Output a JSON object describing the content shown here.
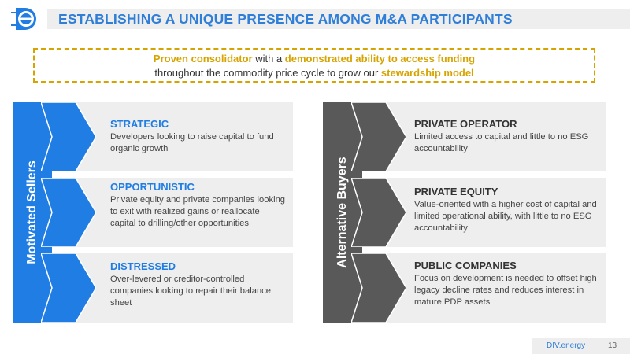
{
  "header": {
    "title": "ESTABLISHING A UNIQUE PRESENCE AMONG M&A PARTICIPANTS"
  },
  "callout": {
    "line1_hl1": "Proven consolidator",
    "line1_mid": " with a ",
    "line1_hl2": "demonstrated ability to access funding",
    "line2_text": "throughout the commodity price cycle to grow our ",
    "line2_hl": "stewardship model"
  },
  "left_label": "Motivated Sellers",
  "right_label": "Alternative Buyers",
  "sellers": [
    {
      "title": "STRATEGIC",
      "text": "Developers looking to raise capital to fund organic growth"
    },
    {
      "title": "OPPORTUNISTIC",
      "text": "Private equity and private companies looking to exit with realized gains or reallocate capital to drilling/other opportunities"
    },
    {
      "title": "DISTRESSED",
      "text": "Over-levered or creditor-controlled companies looking to repair their balance sheet"
    }
  ],
  "buyers": [
    {
      "title": "PRIVATE OPERATOR",
      "text": "Limited access to capital and little to no ESG accountability"
    },
    {
      "title": "PRIVATE EQUITY",
      "text": "Value-oriented with a higher cost of capital and limited operational ability, with little to no ESG accountability"
    },
    {
      "title": "PUBLIC COMPANIES",
      "text": "Focus on development is needed to offset high legacy decline rates and reduces interest in mature PDP assets"
    }
  ],
  "footer": {
    "brand": "DIV.energy",
    "page": "13"
  },
  "colors": {
    "accent_blue": "#1f7de3",
    "title_blue": "#2f7ed8",
    "gold": "#d6a400",
    "gray_bar": "#595959",
    "card_bg": "#eeeeee"
  }
}
